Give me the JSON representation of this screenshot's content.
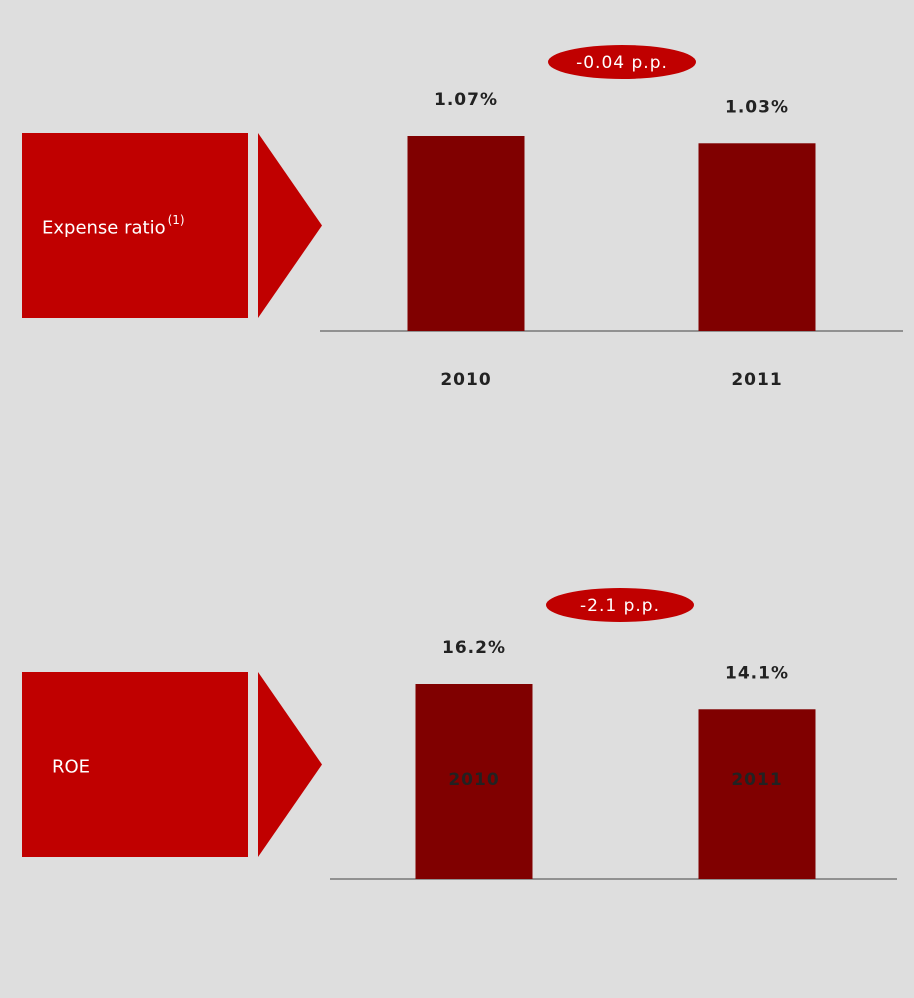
{
  "chart_data": [
    {
      "type": "bar",
      "label": "Expense ratio",
      "label_note": "(1)",
      "annotation": "-0.04 p.p.",
      "categories": [
        "2010",
        "2011"
      ],
      "values": [
        1.07,
        1.03
      ],
      "value_labels": [
        "1.07%",
        "1.03%"
      ],
      "color": "#800000",
      "box_color": "#c00000"
    },
    {
      "type": "bar",
      "label": "ROE",
      "annotation": "-2.1 p.p.",
      "categories": [
        "2010",
        "2011"
      ],
      "values": [
        16.2,
        14.1
      ],
      "value_labels": [
        "16.2%",
        "14.1%"
      ],
      "color": "#800000",
      "box_color": "#c00000"
    }
  ]
}
